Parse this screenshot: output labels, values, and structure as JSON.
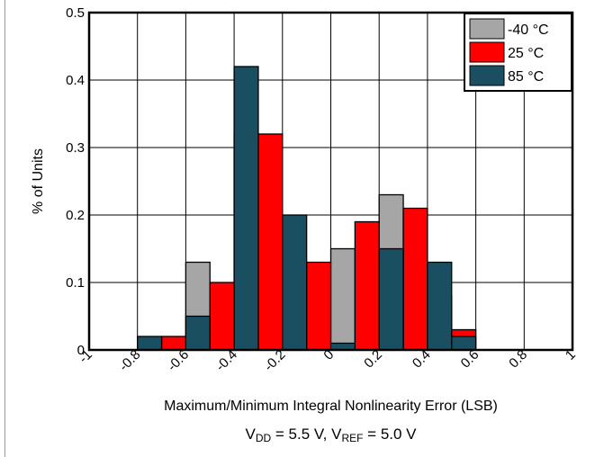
{
  "chart_data": {
    "type": "bar",
    "xlabel": "Maximum/Minimum Integral Nonlinearity Error (LSB)",
    "ylabel": "% of Units",
    "xlim": [
      -1,
      1
    ],
    "ylim": [
      0,
      0.5
    ],
    "x_ticks": [
      "-1",
      "-0.8",
      "-0.6",
      "-0.4",
      "-0.2",
      "0",
      "0.2",
      "0.4",
      "0.6",
      "0.8",
      "1"
    ],
    "y_ticks": [
      "0",
      "0.1",
      "0.2",
      "0.3",
      "0.4",
      "0.5"
    ],
    "grid": true,
    "legend_position": "top-right",
    "bin_starts": [
      -0.8,
      -0.7,
      -0.6,
      -0.5,
      -0.4,
      -0.3,
      -0.2,
      -0.1,
      0.0,
      0.1,
      0.2,
      0.3,
      0.4,
      0.5
    ],
    "series": [
      {
        "name": "-40 °C",
        "color": "#a6a6a6",
        "values": [
          0,
          0,
          0.13,
          0,
          0.32,
          0,
          0.1,
          0,
          0.15,
          0,
          0.23,
          0,
          0.08,
          0
        ]
      },
      {
        "name": "25 °C",
        "color": "#ff0000",
        "values": [
          0,
          0.02,
          0,
          0.1,
          0,
          0.32,
          0,
          0.13,
          0,
          0.19,
          0,
          0.21,
          0,
          0.03
        ]
      },
      {
        "name": "85 °C",
        "color": "#1a4f61",
        "values": [
          0.02,
          0,
          0.05,
          0,
          0.42,
          0,
          0.2,
          0,
          0.01,
          0,
          0.15,
          0,
          0.13,
          0.02
        ]
      }
    ]
  },
  "caption": {
    "xlabel": "Maximum/Minimum Integral Nonlinearity Error (LSB)",
    "cond_v": "V",
    "cond_dd": "DD",
    "cond_mid": " = 5.5 V, V",
    "cond_ref": "REF",
    "cond_end": " = 5.0 V"
  }
}
